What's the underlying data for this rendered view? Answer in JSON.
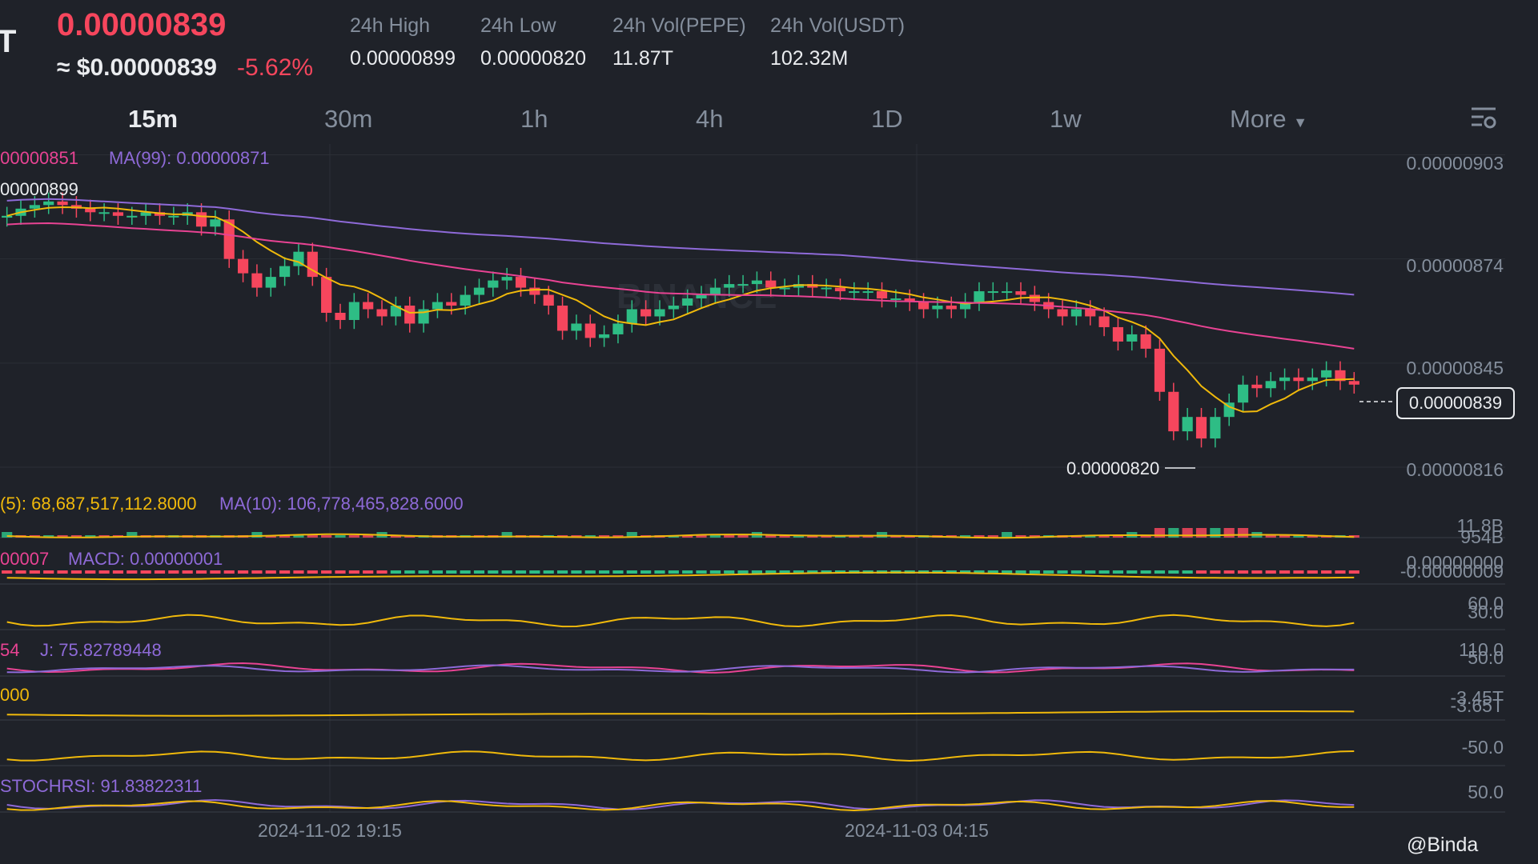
{
  "header": {
    "symbol_fragment": "T",
    "last_price": "0.00000839",
    "approx_usd": "≈ $0.00000839",
    "change_pct": "-5.62%",
    "stats": [
      {
        "label": "24h High",
        "value": "0.00000899"
      },
      {
        "label": "24h Low",
        "value": "0.00000820"
      },
      {
        "label": "24h Vol(PEPE)",
        "value": "11.87T"
      },
      {
        "label": "24h Vol(USDT)",
        "value": "102.32M"
      }
    ]
  },
  "timeframes": [
    "15m",
    "30m",
    "1h",
    "4h",
    "1D",
    "1w"
  ],
  "active_timeframe": "15m",
  "more_label": "More",
  "colors": {
    "background": "#1f2229",
    "up": "#2ebd85",
    "down": "#f6465d",
    "ma7": "#f0b90b",
    "ma25": "#e84393",
    "ma99": "#8e6ad8"
  },
  "legend": {
    "ma25": ".00000851",
    "ma99": "MA(99): 0.00000871",
    "high_marker": "00000899",
    "low_marker": "0.00000820",
    "vol_ma5": "(5): 68,687,517,112.8000",
    "vol_ma10": "MA(10): 106,778,465,828.6000",
    "macd_left": "00007",
    "macd": "MACD: 0.00000001",
    "kdj_left": "54",
    "kdj_j": "J: 75.82789448",
    "obv_left": "000",
    "stochrsi": "STOCHRSI: 91.83822311"
  },
  "price_axis": [
    "0.00000903",
    "0.00000874",
    "0.00000845",
    "0.00000816"
  ],
  "current_price_tag": "0.00000839",
  "indicator_axis": {
    "vol": [
      "11.8B",
      "954B"
    ],
    "macd": [
      "0.00000000",
      "-0.00000009"
    ],
    "rsi": [
      "60.0",
      "30.0"
    ],
    "kdj": [
      "110.0",
      "50.0"
    ],
    "obv": [
      "-3.45T",
      "-3.65T"
    ],
    "wr": [
      "-50.0"
    ],
    "stochrsi": [
      "50.0"
    ]
  },
  "time_axis": [
    "2024-11-02 19:15",
    "2024-11-03 04:15"
  ],
  "watermark": "BINANCE",
  "footer_watermark": "@Binda",
  "chart_data": {
    "type": "candlestick",
    "interval": "15m",
    "y_range": [
      8.12e-06,
      9.06e-06
    ],
    "y_ticks": [
      9.03e-06,
      8.74e-06,
      8.45e-06,
      8.16e-06
    ],
    "x_ticks": [
      "2024-11-02 19:15",
      "2024-11-03 04:15"
    ],
    "high_24h": 8.99e-06,
    "low_24h": 8.2e-06,
    "last": 8.39e-06,
    "closes": [
      8.86e-06,
      8.88e-06,
      8.89e-06,
      8.9e-06,
      8.89e-06,
      8.88e-06,
      8.87e-06,
      8.87e-06,
      8.86e-06,
      8.86e-06,
      8.87e-06,
      8.86e-06,
      8.86e-06,
      8.87e-06,
      8.83e-06,
      8.85e-06,
      8.74e-06,
      8.7e-06,
      8.66e-06,
      8.69e-06,
      8.72e-06,
      8.76e-06,
      8.69e-06,
      8.59e-06,
      8.57e-06,
      8.62e-06,
      8.6e-06,
      8.58e-06,
      8.61e-06,
      8.56e-06,
      8.6e-06,
      8.62e-06,
      8.61e-06,
      8.64e-06,
      8.66e-06,
      8.68e-06,
      8.69e-06,
      8.66e-06,
      8.64e-06,
      8.61e-06,
      8.54e-06,
      8.56e-06,
      8.52e-06,
      8.53e-06,
      8.56e-06,
      8.6e-06,
      8.58e-06,
      8.6e-06,
      8.61e-06,
      8.63e-06,
      8.64e-06,
      8.66e-06,
      8.67e-06,
      8.67e-06,
      8.68e-06,
      8.66e-06,
      8.66e-06,
      8.67e-06,
      8.66e-06,
      8.66e-06,
      8.65e-06,
      8.65e-06,
      8.65e-06,
      8.63e-06,
      8.63e-06,
      8.62e-06,
      8.6e-06,
      8.61e-06,
      8.6e-06,
      8.62e-06,
      8.65e-06,
      8.65e-06,
      8.65e-06,
      8.64e-06,
      8.62e-06,
      8.6e-06,
      8.58e-06,
      8.6e-06,
      8.58e-06,
      8.55e-06,
      8.51e-06,
      8.53e-06,
      8.49e-06,
      8.37e-06,
      8.26e-06,
      8.3e-06,
      8.24e-06,
      8.3e-06,
      8.34e-06,
      8.39e-06,
      8.38e-06,
      8.4e-06,
      8.41e-06,
      8.4e-06,
      8.41e-06,
      8.43e-06,
      8.4e-06,
      8.39e-06
    ],
    "series": [
      {
        "name": "MA(25)",
        "start": 8.82e-06,
        "end": 8.52e-06
      },
      {
        "name": "MA(99)",
        "start": 8.93e-06,
        "end": 8.7e-06
      }
    ]
  }
}
